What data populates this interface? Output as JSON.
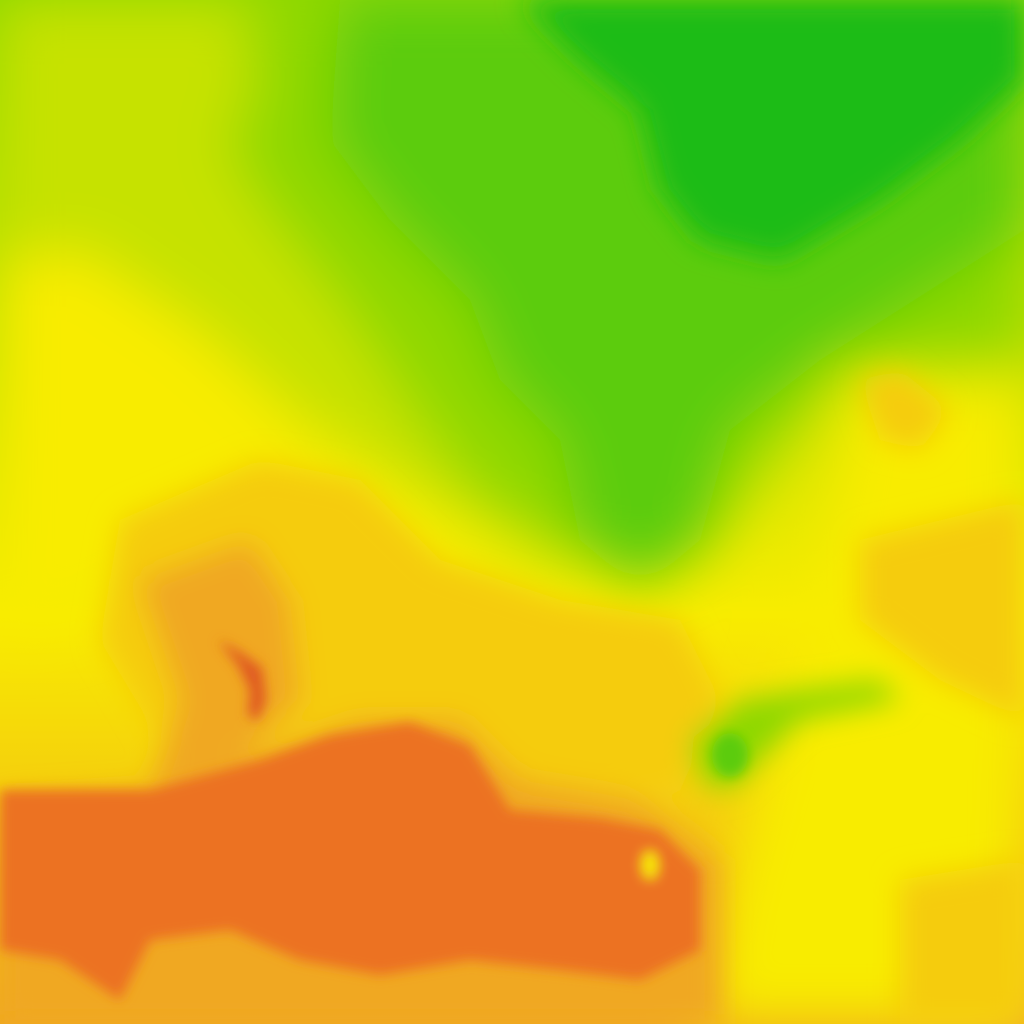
{
  "map": {
    "type": "heatmap-tile",
    "palette": {
      "dark_green": "#1cbc14",
      "green": "#5ccc0c",
      "light_green": "#8fd800",
      "yellow_green": "#c6e200",
      "yellow": "#f8ec00",
      "gold": "#f5cc10",
      "amber": "#f0a820",
      "orange": "#ec7222",
      "red_orange": "#e05a20"
    }
  }
}
